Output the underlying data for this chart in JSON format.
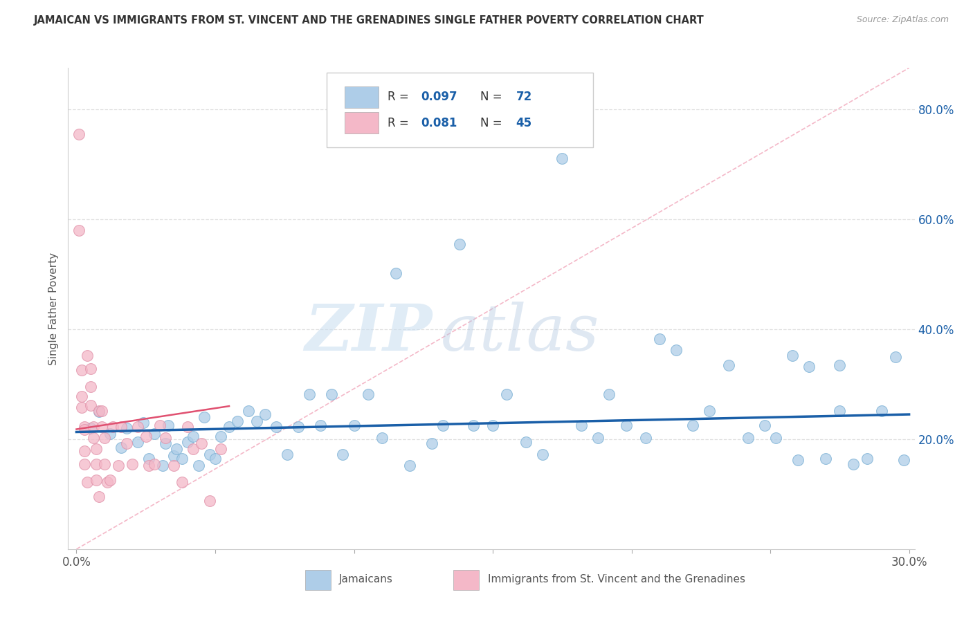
{
  "title": "JAMAICAN VS IMMIGRANTS FROM ST. VINCENT AND THE GRENADINES SINGLE FATHER POVERTY CORRELATION CHART",
  "source": "Source: ZipAtlas.com",
  "ylabel": "Single Father Poverty",
  "xlim": [
    -0.003,
    0.302
  ],
  "ylim": [
    0.0,
    0.875
  ],
  "x_tick_pos": [
    0.0,
    0.05,
    0.1,
    0.15,
    0.2,
    0.25,
    0.3
  ],
  "x_tick_labels": [
    "0.0%",
    "",
    "",
    "",
    "",
    "",
    "30.0%"
  ],
  "y_ticks_right": [
    0.2,
    0.4,
    0.6,
    0.8
  ],
  "y_tick_labels_right": [
    "20.0%",
    "40.0%",
    "60.0%",
    "80.0%"
  ],
  "blue_color": "#aecde8",
  "pink_color": "#f4b8c8",
  "trend_blue_color": "#1a5fa8",
  "diagonal_color": "#f4b8c8",
  "grid_color": "#e0e0e0",
  "R_blue": 0.097,
  "N_blue": 72,
  "R_pink": 0.081,
  "N_pink": 45,
  "watermark_zip": "ZIP",
  "watermark_atlas": "atlas",
  "blue_x": [
    0.005,
    0.008,
    0.012,
    0.016,
    0.018,
    0.022,
    0.024,
    0.026,
    0.028,
    0.031,
    0.032,
    0.033,
    0.035,
    0.036,
    0.038,
    0.04,
    0.042,
    0.044,
    0.046,
    0.048,
    0.05,
    0.052,
    0.055,
    0.058,
    0.062,
    0.065,
    0.068,
    0.072,
    0.076,
    0.08,
    0.084,
    0.088,
    0.092,
    0.096,
    0.1,
    0.105,
    0.11,
    0.115,
    0.12,
    0.128,
    0.132,
    0.138,
    0.143,
    0.15,
    0.155,
    0.162,
    0.168,
    0.175,
    0.182,
    0.188,
    0.192,
    0.198,
    0.205,
    0.21,
    0.216,
    0.222,
    0.228,
    0.235,
    0.242,
    0.248,
    0.252,
    0.258,
    0.264,
    0.27,
    0.275,
    0.28,
    0.285,
    0.29,
    0.295,
    0.298,
    0.275,
    0.26
  ],
  "blue_y": [
    0.22,
    0.25,
    0.21,
    0.185,
    0.22,
    0.195,
    0.23,
    0.165,
    0.21,
    0.152,
    0.192,
    0.225,
    0.17,
    0.182,
    0.165,
    0.195,
    0.205,
    0.152,
    0.24,
    0.172,
    0.165,
    0.205,
    0.222,
    0.232,
    0.252,
    0.232,
    0.245,
    0.222,
    0.172,
    0.222,
    0.282,
    0.225,
    0.282,
    0.172,
    0.225,
    0.282,
    0.202,
    0.502,
    0.152,
    0.192,
    0.225,
    0.555,
    0.225,
    0.225,
    0.282,
    0.195,
    0.172,
    0.71,
    0.225,
    0.202,
    0.282,
    0.225,
    0.202,
    0.382,
    0.362,
    0.225,
    0.252,
    0.335,
    0.202,
    0.225,
    0.202,
    0.352,
    0.332,
    0.165,
    0.252,
    0.155,
    0.165,
    0.252,
    0.35,
    0.162,
    0.335,
    0.162
  ],
  "pink_x": [
    0.001,
    0.001,
    0.002,
    0.002,
    0.002,
    0.003,
    0.003,
    0.003,
    0.003,
    0.004,
    0.004,
    0.005,
    0.005,
    0.005,
    0.006,
    0.006,
    0.007,
    0.007,
    0.007,
    0.008,
    0.008,
    0.009,
    0.009,
    0.01,
    0.01,
    0.011,
    0.012,
    0.013,
    0.015,
    0.016,
    0.018,
    0.02,
    0.022,
    0.025,
    0.026,
    0.028,
    0.03,
    0.032,
    0.035,
    0.038,
    0.04,
    0.042,
    0.045,
    0.048,
    0.052
  ],
  "pink_y": [
    0.755,
    0.58,
    0.325,
    0.278,
    0.258,
    0.222,
    0.218,
    0.178,
    0.155,
    0.122,
    0.352,
    0.328,
    0.295,
    0.262,
    0.222,
    0.202,
    0.182,
    0.155,
    0.125,
    0.252,
    0.095,
    0.252,
    0.222,
    0.202,
    0.155,
    0.122,
    0.125,
    0.222,
    0.152,
    0.222,
    0.192,
    0.155,
    0.222,
    0.205,
    0.152,
    0.155,
    0.225,
    0.202,
    0.152,
    0.122,
    0.222,
    0.182,
    0.192,
    0.088,
    0.182
  ]
}
